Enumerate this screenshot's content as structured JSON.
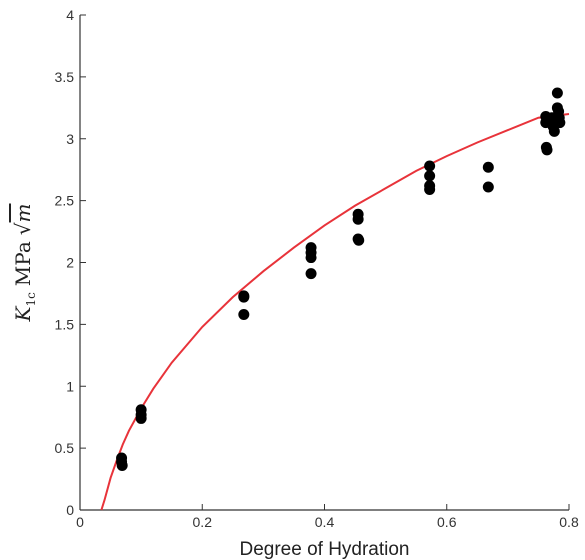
{
  "chart_data": {
    "type": "scatter",
    "title": "",
    "xlabel": "Degree of Hydration",
    "ylabel": "K1c MPa √m",
    "ylabel_parts": {
      "symbol": "K",
      "subscript": "1c",
      "unit": "MPa",
      "sqrt": "m"
    },
    "xlim": [
      0,
      0.8
    ],
    "ylim": [
      0,
      4
    ],
    "xticks": [
      0,
      0.2,
      0.4,
      0.6,
      0.8
    ],
    "xtick_labels": [
      "0",
      "0.2",
      "0.4",
      "0.6",
      "0.8"
    ],
    "yticks": [
      0,
      0.5,
      1,
      1.5,
      2,
      2.5,
      3,
      3.5,
      4
    ],
    "ytick_labels": [
      "0",
      "0.5",
      "1",
      "1.5",
      "2",
      "2.5",
      "3",
      "3.5",
      "4"
    ],
    "grid": false,
    "series": [
      {
        "type": "scatter",
        "color": "#000000",
        "points": [
          [
            0.068,
            0.42
          ],
          [
            0.068,
            0.39
          ],
          [
            0.069,
            0.36
          ],
          [
            0.1,
            0.81
          ],
          [
            0.1,
            0.77
          ],
          [
            0.1,
            0.74
          ],
          [
            0.268,
            1.73
          ],
          [
            0.268,
            1.72
          ],
          [
            0.268,
            1.58
          ],
          [
            0.378,
            2.12
          ],
          [
            0.378,
            2.08
          ],
          [
            0.378,
            2.04
          ],
          [
            0.378,
            1.91
          ],
          [
            0.455,
            2.39
          ],
          [
            0.455,
            2.35
          ],
          [
            0.455,
            2.19
          ],
          [
            0.456,
            2.18
          ],
          [
            0.572,
            2.78
          ],
          [
            0.572,
            2.7
          ],
          [
            0.572,
            2.62
          ],
          [
            0.572,
            2.59
          ],
          [
            0.668,
            2.77
          ],
          [
            0.668,
            2.61
          ],
          [
            0.762,
            3.18
          ],
          [
            0.762,
            3.13
          ],
          [
            0.763,
            2.93
          ],
          [
            0.764,
            2.91
          ],
          [
            0.772,
            3.17
          ],
          [
            0.774,
            3.1
          ],
          [
            0.776,
            3.06
          ],
          [
            0.781,
            3.37
          ],
          [
            0.781,
            3.25
          ],
          [
            0.783,
            3.22
          ],
          [
            0.784,
            3.17
          ],
          [
            0.785,
            3.13
          ]
        ]
      },
      {
        "type": "line",
        "color": "#e8333a",
        "x": [
          0.035,
          0.04,
          0.05,
          0.06,
          0.07,
          0.08,
          0.1,
          0.12,
          0.15,
          0.2,
          0.25,
          0.3,
          0.35,
          0.4,
          0.45,
          0.5,
          0.55,
          0.6,
          0.65,
          0.7,
          0.75,
          0.8
        ],
        "y": [
          0.0,
          0.08,
          0.26,
          0.4,
          0.53,
          0.64,
          0.82,
          0.98,
          1.19,
          1.48,
          1.72,
          1.93,
          2.12,
          2.3,
          2.46,
          2.6,
          2.74,
          2.86,
          2.97,
          3.07,
          3.17,
          3.2
        ]
      }
    ]
  }
}
